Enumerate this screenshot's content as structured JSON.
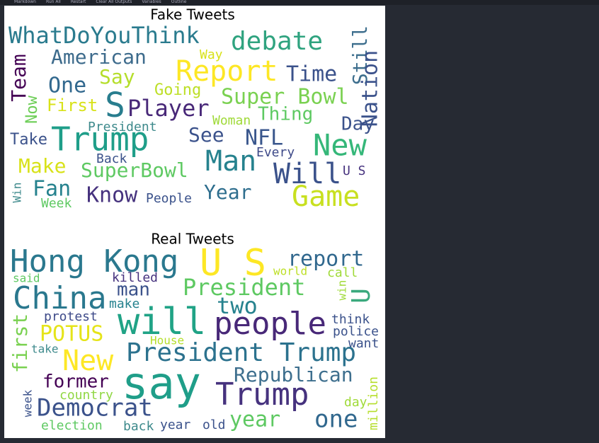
{
  "toolbar": {
    "items": [
      "Markdown",
      "Run All",
      "Restart",
      "Clear All Outputs",
      "Variables",
      "Outline"
    ]
  },
  "figures": [
    {
      "title": "Fake Tweets",
      "words": [
        "WhatDoYouThink",
        "debate",
        "Still",
        "American",
        "Way",
        "Report",
        "Time",
        "Team",
        "Say",
        "One",
        "Going",
        "Super Bowl",
        "Nation",
        "First",
        "S",
        "Player",
        "Now",
        "Thing",
        "Woman",
        "President",
        "Day",
        "Trump",
        "See",
        "NFL",
        "Take",
        "New",
        "Every",
        "Back",
        "Man",
        "Make",
        "SuperBowl",
        "Will",
        "U S",
        "Fan",
        "Know",
        "Year",
        "Game",
        "People",
        "Win",
        "Week"
      ]
    },
    {
      "title": "Real Tweets",
      "words": [
        "Hong Kong",
        "U S",
        "report",
        "said",
        "killed",
        "world",
        "call",
        "China",
        "man",
        "President",
        "win",
        "U",
        "make",
        "two",
        "protest",
        "think",
        "will",
        "people",
        "POTUS",
        "police",
        "first",
        "House",
        "want",
        "take",
        "President Trump",
        "New",
        "Republican",
        "say",
        "former",
        "country",
        "Trump",
        "week",
        "Democrat",
        "day",
        "million",
        "year",
        "one",
        "election",
        "back",
        "year",
        "old"
      ]
    }
  ]
}
